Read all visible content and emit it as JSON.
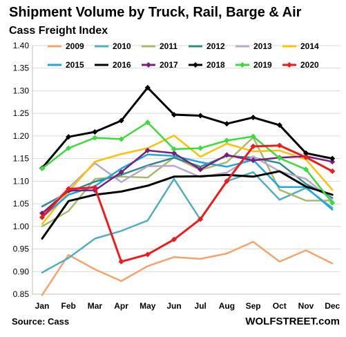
{
  "chart_data": {
    "type": "line",
    "title": "Shipment Volume by Truck, Rail, Barge & Air",
    "subtitle": "Cass Freight Index",
    "source": "Source: Cass",
    "brand": "WOLFSTREET.com",
    "categories": [
      "Jan",
      "Feb",
      "Mar",
      "Apr",
      "May",
      "Jun",
      "Jul",
      "Aug",
      "Sep",
      "Oct",
      "Nov",
      "Dec"
    ],
    "ylim": [
      0.85,
      1.4
    ],
    "yticks": [
      "0.85",
      "0.90",
      "0.95",
      "1.00",
      "1.05",
      "1.10",
      "1.15",
      "1.20",
      "1.25",
      "1.30",
      "1.35",
      "1.40"
    ],
    "legend_placement": "top",
    "series": [
      {
        "name": "2009",
        "color": "#F4A46A",
        "marker": "none",
        "values": [
          0.848,
          0.937,
          0.905,
          0.879,
          0.912,
          0.932,
          0.928,
          0.94,
          0.966,
          0.922,
          0.947,
          0.918
        ]
      },
      {
        "name": "2010",
        "color": "#4DAFC0",
        "marker": "none",
        "values": [
          0.898,
          0.93,
          0.973,
          0.99,
          1.013,
          1.105,
          1.015,
          1.1,
          1.12,
          1.059,
          1.085,
          1.041
        ]
      },
      {
        "name": "2011",
        "color": "#A8B86A",
        "marker": "none",
        "values": [
          1.0,
          1.034,
          1.105,
          1.11,
          1.108,
          1.153,
          1.125,
          1.142,
          1.197,
          1.081,
          1.057,
          1.057
        ]
      },
      {
        "name": "2012",
        "color": "#2E8B8B",
        "marker": "none",
        "values": [
          1.044,
          1.076,
          1.099,
          1.114,
          1.135,
          1.152,
          1.132,
          1.156,
          1.152,
          1.14,
          1.094,
          1.063
        ]
      },
      {
        "name": "2013",
        "color": "#B9A6CE",
        "marker": "none",
        "values": [
          1.027,
          1.085,
          1.14,
          1.098,
          1.133,
          1.134,
          1.109,
          1.119,
          1.155,
          1.122,
          1.105,
          1.058
        ]
      },
      {
        "name": "2014",
        "color": "#FFC000",
        "marker": "none",
        "values": [
          1.005,
          1.077,
          1.143,
          1.16,
          1.173,
          1.201,
          1.154,
          1.183,
          1.166,
          1.168,
          1.148,
          1.081
        ]
      },
      {
        "name": "2015",
        "color": "#1EA6E0",
        "marker": "none",
        "values": [
          1.02,
          1.07,
          1.089,
          1.128,
          1.159,
          1.156,
          1.142,
          1.132,
          1.147,
          1.087,
          1.087,
          1.037
        ]
      },
      {
        "name": "2016",
        "color": "#000000",
        "marker": "none",
        "values": [
          0.973,
          1.056,
          1.07,
          1.077,
          1.09,
          1.11,
          1.111,
          1.114,
          1.11,
          1.122,
          1.088,
          1.07
        ]
      },
      {
        "name": "2017",
        "color": "#7B1E7A",
        "marker": "diamond",
        "values": [
          1.029,
          1.079,
          1.08,
          1.12,
          1.168,
          1.162,
          1.126,
          1.158,
          1.146,
          1.152,
          1.155,
          1.143
        ]
      },
      {
        "name": "2018",
        "color": "#000000",
        "marker": "diamond",
        "values": [
          1.129,
          1.198,
          1.209,
          1.234,
          1.307,
          1.247,
          1.245,
          1.227,
          1.241,
          1.224,
          1.162,
          1.15
        ]
      },
      {
        "name": "2019",
        "color": "#3BDB3B",
        "marker": "diamond",
        "values": [
          1.128,
          1.173,
          1.196,
          1.193,
          1.23,
          1.171,
          1.173,
          1.19,
          1.199,
          1.151,
          1.126,
          1.052
        ]
      },
      {
        "name": "2020",
        "color": "#F11A1A",
        "marker": "diamond",
        "values": [
          1.02,
          1.083,
          1.086,
          0.922,
          0.938,
          0.971,
          1.016,
          1.1,
          1.177,
          1.179,
          1.153,
          1.122
        ]
      }
    ]
  }
}
